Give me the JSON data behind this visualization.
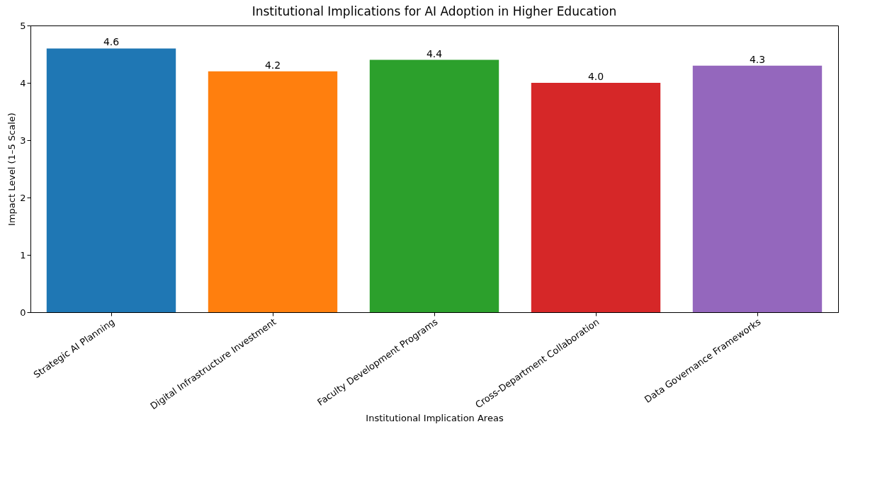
{
  "chart_data": {
    "type": "bar",
    "title": "Institutional Implications for AI Adoption in Higher Education",
    "xlabel": "Institutional Implication Areas",
    "ylabel": "Impact Level (1–5 Scale)",
    "categories": [
      "Strategic AI Planning",
      "Digital Infrastructure Investment",
      "Faculty Development Programs",
      "Cross-Department Collaboration",
      "Data Governance Frameworks"
    ],
    "values": [
      4.6,
      4.2,
      4.4,
      4.0,
      4.3
    ],
    "colors": [
      "#1f77b4",
      "#ff7f0e",
      "#2ca02c",
      "#d62728",
      "#9467bd"
    ],
    "value_labels": [
      "4.6",
      "4.2",
      "4.4",
      "4.0",
      "4.3"
    ],
    "ylim": [
      0,
      5
    ],
    "yticks": [
      0,
      1,
      2,
      3,
      4,
      5
    ],
    "grid": false
  }
}
